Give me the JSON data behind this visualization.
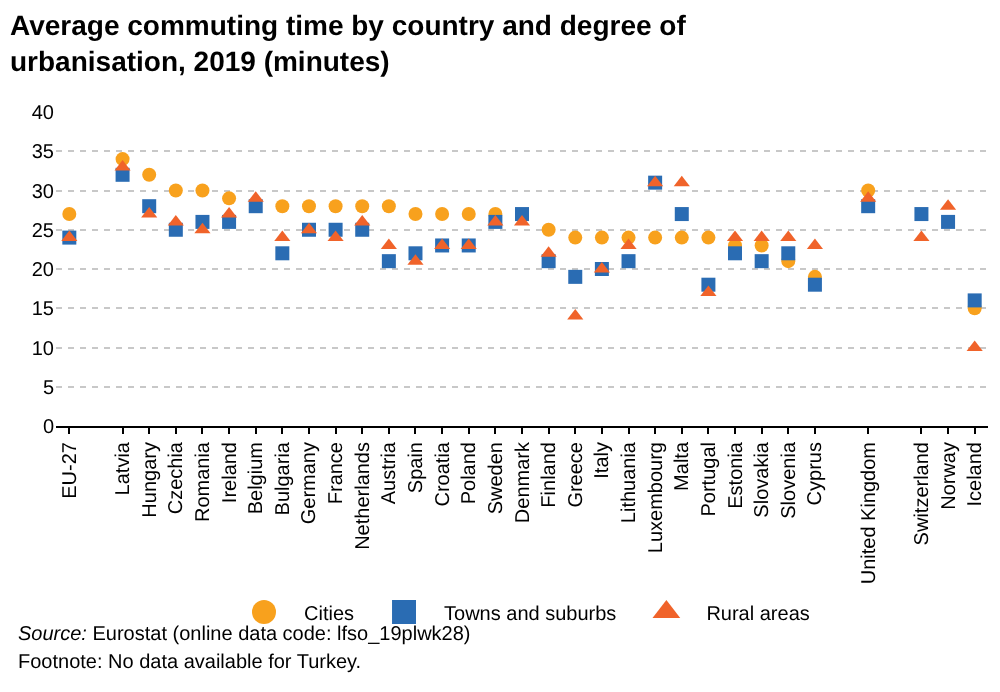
{
  "chart_data": {
    "type": "scatter",
    "title": "Average commuting time by country and degree of urbanisation, 2019 (minutes)",
    "categories": [
      "EU-27",
      null,
      "Latvia",
      "Hungary",
      "Czechia",
      "Romania",
      "Ireland",
      "Belgium",
      "Bulgaria",
      "Germany",
      "France",
      "Netherlands",
      "Austria",
      "Spain",
      "Croatia",
      "Poland",
      "Sweden",
      "Denmark",
      "Finland",
      "Greece",
      "Italy",
      "Lithuania",
      "Luxembourg",
      "Malta",
      "Portugal",
      "Estonia",
      "Slovakia",
      "Slovenia",
      "Cyprus",
      null,
      "United Kingdom",
      null,
      "Switzerland",
      "Norway",
      "Iceland"
    ],
    "series": [
      {
        "name": "Cities",
        "color": "#f8a11d",
        "marker": "circle",
        "values": [
          27,
          null,
          34,
          32,
          30,
          30,
          29,
          null,
          28,
          28,
          28,
          28,
          28,
          27,
          27,
          27,
          27,
          null,
          25,
          24,
          24,
          24,
          24,
          24,
          24,
          23,
          23,
          21,
          19,
          null,
          30,
          null,
          null,
          null,
          15
        ]
      },
      {
        "name": "Towns and suburbs",
        "color": "#2a6cb3",
        "marker": "square",
        "values": [
          24,
          null,
          32,
          28,
          25,
          26,
          26,
          28,
          22,
          25,
          25,
          25,
          21,
          22,
          23,
          23,
          26,
          27,
          21,
          19,
          20,
          21,
          31,
          27,
          18,
          22,
          21,
          22,
          18,
          null,
          28,
          null,
          27,
          26,
          16
        ]
      },
      {
        "name": "Rural areas",
        "color": "#f0632a",
        "marker": "triangle",
        "values": [
          24,
          null,
          33,
          27,
          26,
          25,
          27,
          29,
          24,
          25,
          24,
          26,
          23,
          21,
          23,
          23,
          26,
          26,
          22,
          14,
          20,
          23,
          31,
          31,
          17,
          24,
          24,
          24,
          23,
          null,
          29,
          null,
          24,
          28,
          10
        ]
      }
    ],
    "ylim": [
      0,
      40
    ],
    "yticks": [
      0,
      5,
      10,
      15,
      20,
      25,
      30,
      35,
      40
    ],
    "grid": "y",
    "legend": "bottom",
    "annotations": [
      "Source: Eurostat (online data code: lfso_19plwk28)",
      "Footnote: No data available for Turkey."
    ]
  }
}
